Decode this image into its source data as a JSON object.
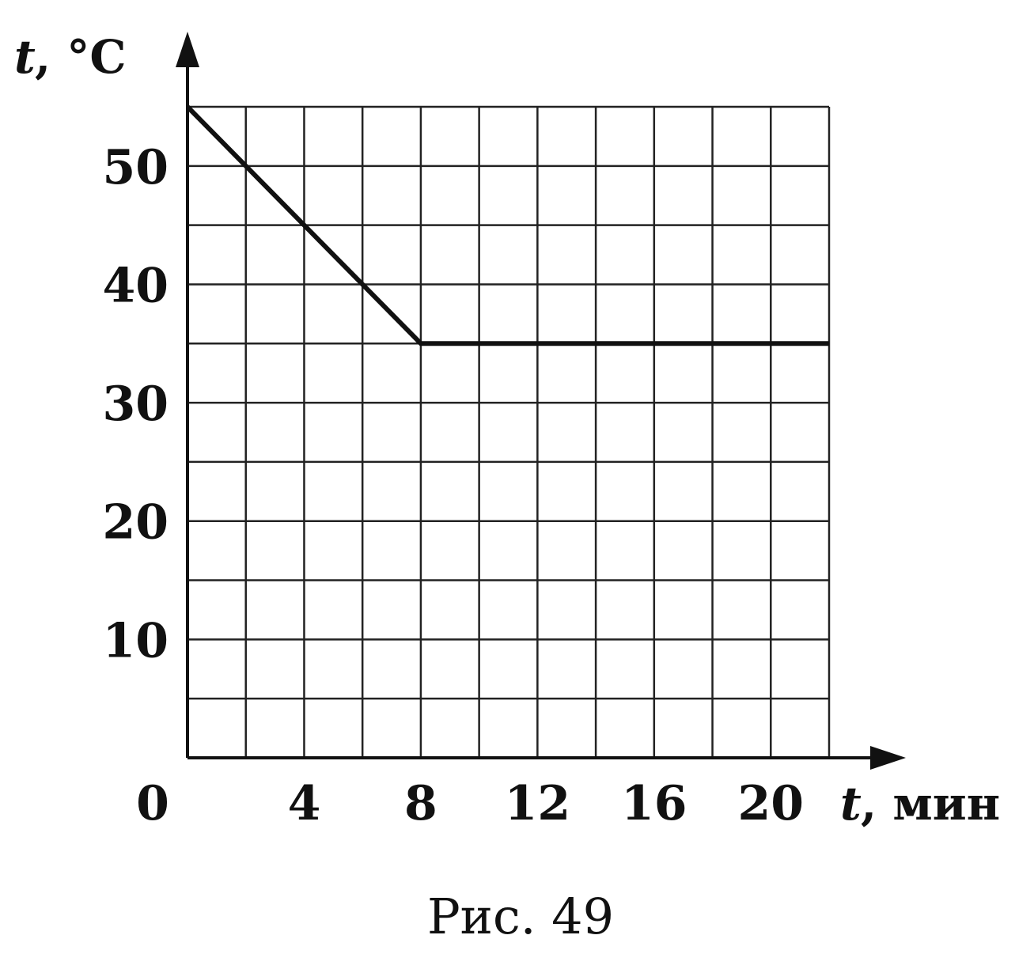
{
  "chart_data": {
    "type": "line",
    "series": [
      {
        "x": [
          0,
          8,
          22
        ],
        "y": [
          55,
          35,
          35
        ]
      }
    ],
    "xlim": [
      0,
      22
    ],
    "ylim": [
      0,
      55
    ],
    "x_ticks": [
      "0",
      "4",
      "8",
      "12",
      "16",
      "20"
    ],
    "y_ticks": [
      "10",
      "20",
      "30",
      "40",
      "50"
    ],
    "x_tick_values": [
      0,
      4,
      8,
      12,
      16,
      20
    ],
    "y_tick_values": [
      10,
      20,
      30,
      40,
      50
    ],
    "grid_step_x": 2,
    "grid_step_y": 5,
    "grid": true,
    "xlabel": {
      "var": "t",
      "unit": ", мин"
    },
    "ylabel": {
      "var": "t",
      "unit": ", °C"
    },
    "caption": "Рис. 49",
    "colors": {
      "line": "#111111",
      "grid": "#222222",
      "axis": "#111111"
    }
  }
}
